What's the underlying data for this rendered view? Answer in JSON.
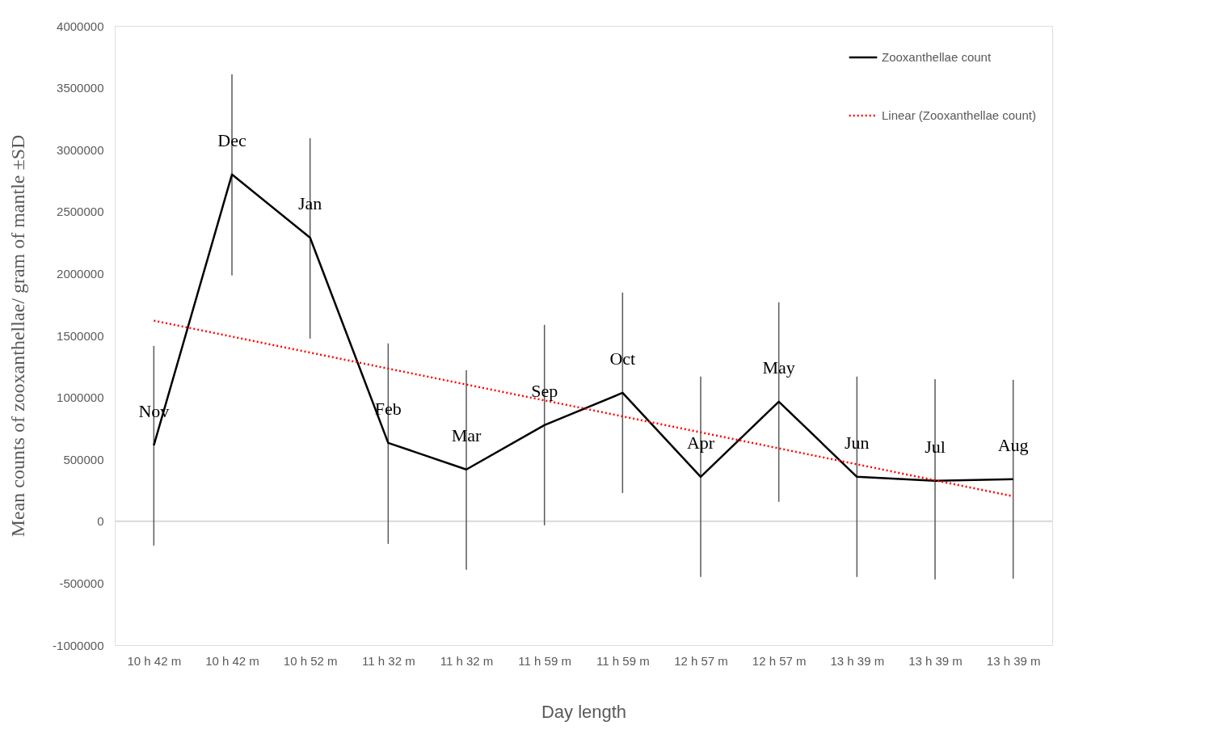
{
  "chart_data": {
    "type": "line",
    "xlabel": "Day length",
    "ylabel": "Mean counts of zooxanthellae/ gram of mantle ±SD",
    "categories": [
      "10 h 42 m",
      "10 h 42 m",
      "10 h 52 m",
      "11 h 32 m",
      "11 h 32 m",
      "11 h 59 m",
      "11 h 59 m",
      "12 h 57 m",
      "12 h 57 m",
      "13 h 39 m",
      "13 h 39 m",
      "13 h 39 m"
    ],
    "series": [
      {
        "name": "Zooxanthellae count",
        "color": "#000000",
        "line_style": "solid",
        "values": [
          613000,
          2800000,
          2290000,
          633000,
          418000,
          776000,
          1037000,
          359000,
          966000,
          359000,
          326000,
          339000
        ],
        "errors": [
          [
            -196000,
            1416000
          ],
          [
            1984000,
            3608000
          ],
          [
            1475000,
            3093000
          ],
          [
            -183000,
            1436000
          ],
          [
            -392000,
            1220000
          ],
          [
            -33000,
            1586000
          ],
          [
            228000,
            1847000
          ],
          [
            -450000,
            1168000
          ],
          [
            157000,
            1768000
          ],
          [
            -450000,
            1168000
          ],
          [
            -470000,
            1148000
          ],
          [
            -463000,
            1142000
          ]
        ]
      },
      {
        "name": "Linear (Zooxanthellae count)",
        "color": "#ff0000",
        "line_style": "dotted",
        "values": [
          1620000,
          1491000,
          1362000,
          1233000,
          1104000,
          976000,
          847000,
          718000,
          589000,
          460000,
          331000,
          202000
        ]
      }
    ],
    "ylim": [
      -1000000,
      4000000
    ],
    "yticks": [
      -1000000,
      -500000,
      0,
      500000,
      1000000,
      1500000,
      2000000,
      2500000,
      3000000,
      3500000,
      4000000
    ],
    "grid": false,
    "legend": "top right",
    "marker": "none",
    "ref_lines": [
      {
        "axis": "y",
        "value": 0,
        "color": "#d9d9d9"
      }
    ],
    "annotations": [
      "Nov",
      "Dec",
      "Jan",
      "Feb",
      "Mar",
      "Sep",
      "Oct",
      "Apr",
      "May",
      "Jun",
      "Jul",
      "Aug"
    ]
  }
}
